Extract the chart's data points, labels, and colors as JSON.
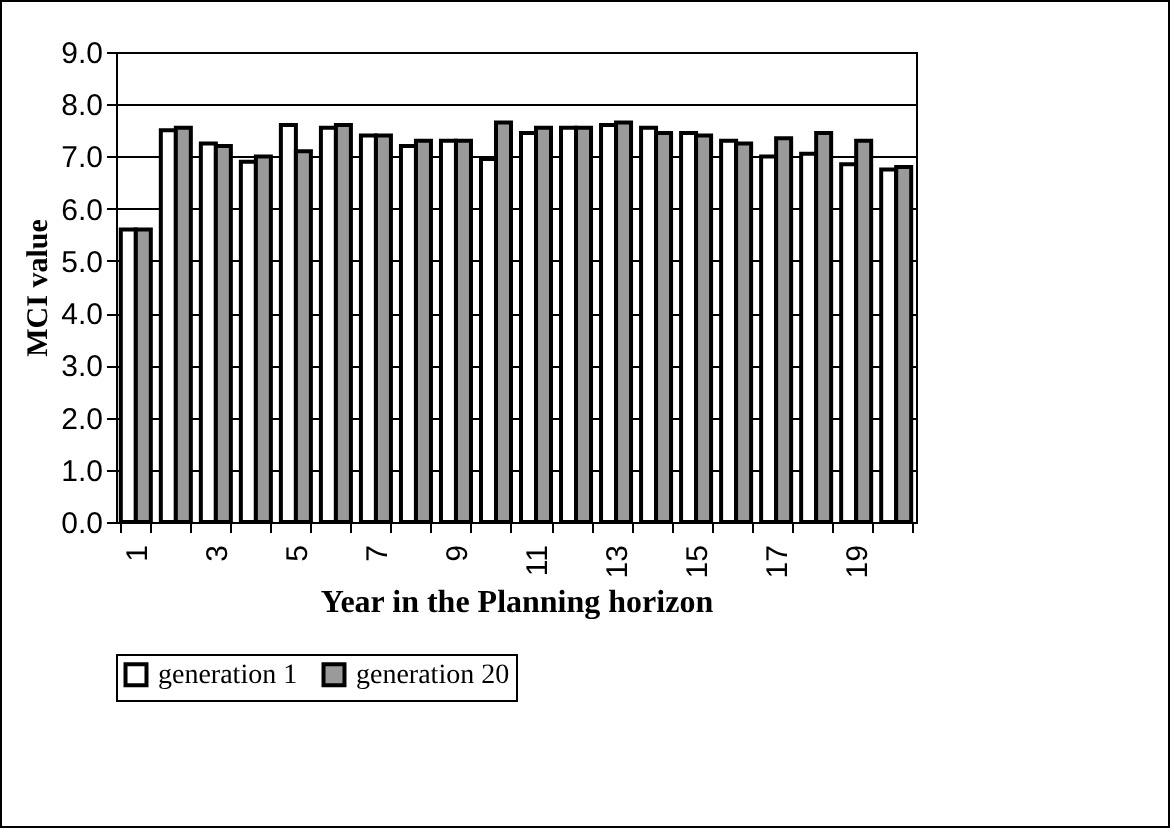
{
  "chart_data": {
    "type": "bar",
    "xlabel": "Year in the Planning horizon",
    "ylabel": "MCI value",
    "categories": [
      "1",
      null,
      "3",
      null,
      "5",
      null,
      "7",
      null,
      "9",
      null,
      "11",
      null,
      "13",
      null,
      "15",
      null,
      "17",
      null,
      "19",
      null
    ],
    "series": [
      {
        "name": "generation 1",
        "color": "#ffffff",
        "values": [
          5.6,
          7.5,
          7.25,
          6.9,
          7.6,
          7.55,
          7.4,
          7.2,
          7.3,
          6.95,
          7.45,
          7.55,
          7.6,
          7.55,
          7.45,
          7.3,
          7.0,
          7.05,
          6.85,
          6.75
        ]
      },
      {
        "name": "generation 20",
        "color": "#9a9a9a",
        "values": [
          5.6,
          7.55,
          7.2,
          7.0,
          7.1,
          7.6,
          7.4,
          7.3,
          7.3,
          7.65,
          7.55,
          7.55,
          7.65,
          7.45,
          7.4,
          7.25,
          7.35,
          7.45,
          7.3,
          6.8
        ]
      }
    ],
    "ylim": [
      0,
      9
    ],
    "yticks": [
      {
        "value": 0,
        "label": "0.0"
      },
      {
        "value": 1,
        "label": "1.0"
      },
      {
        "value": 2,
        "label": "2.0"
      },
      {
        "value": 3,
        "label": "3.0"
      },
      {
        "value": 4,
        "label": "4.0"
      },
      {
        "value": 5,
        "label": "5.0"
      },
      {
        "value": 6,
        "label": "6.0"
      },
      {
        "value": 7,
        "label": "7.0"
      },
      {
        "value": 8,
        "label": "8.0"
      },
      {
        "value": 9,
        "label": "9.0"
      }
    ],
    "grid": "y",
    "legend": "bottom"
  }
}
